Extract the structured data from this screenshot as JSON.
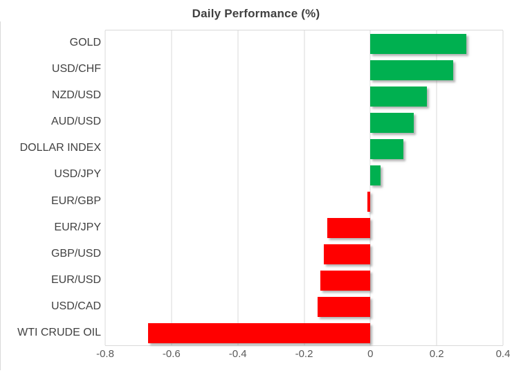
{
  "chart_data": {
    "type": "bar",
    "orientation": "horizontal",
    "title": "Daily Performance (%)",
    "categories": [
      "GOLD",
      "USD/CHF",
      "NZD/USD",
      "AUD/USD",
      "DOLLAR INDEX",
      "USD/JPY",
      "EUR/GBP",
      "EUR/JPY",
      "GBP/USD",
      "EUR/USD",
      "USD/CAD",
      "WTI CRUDE OIL"
    ],
    "values": [
      0.29,
      0.25,
      0.17,
      0.13,
      0.1,
      0.03,
      -0.01,
      -0.13,
      -0.14,
      -0.15,
      -0.16,
      -0.67
    ],
    "xlabel": "",
    "ylabel": "",
    "xlim": [
      -0.8,
      0.4
    ],
    "xticks": [
      -0.8,
      -0.6,
      -0.4,
      -0.2,
      0,
      0.2,
      0.4
    ],
    "xtick_labels": [
      "-0.8",
      "-0.6",
      "-0.4",
      "-0.2",
      "0",
      "0.2",
      "0.4"
    ],
    "grid": true,
    "legend": false,
    "colors": {
      "positive_bar": "#00B050",
      "negative_bar": "#FF0000",
      "gridline": "#D9D9D9",
      "title_text": "#404040",
      "category_text": "#404040",
      "tick_text": "#595959",
      "background": "#FFFFFF"
    }
  }
}
